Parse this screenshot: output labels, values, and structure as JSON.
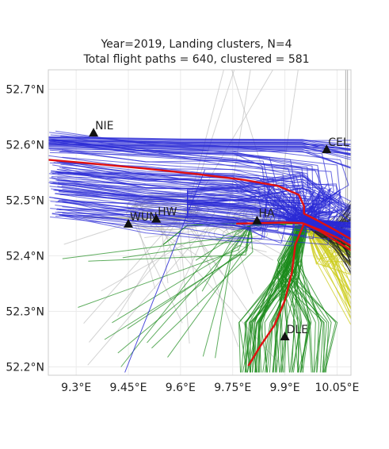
{
  "chart_data": {
    "type": "line",
    "title": [
      "Year=2019, Landing clusters, N=4",
      "Total flight paths = 640, clustered = 581"
    ],
    "xlabel": "",
    "ylabel": "",
    "xlim": [
      9.22,
      10.09
    ],
    "ylim": [
      52.185,
      52.735
    ],
    "grid": true,
    "x_ticks": [
      9.3,
      9.45,
      9.6,
      9.75,
      9.9,
      10.05
    ],
    "x_tick_labels": [
      "9.3°E",
      "9.45°E",
      "9.6°E",
      "9.75°E",
      "9.9°E",
      "10.05°E"
    ],
    "y_ticks": [
      52.2,
      52.3,
      52.4,
      52.5,
      52.6,
      52.7
    ],
    "y_tick_labels": [
      "52.2°N",
      "52.3°N",
      "52.4°N",
      "52.5°N",
      "52.6°N",
      "52.7°N"
    ],
    "stations": [
      {
        "name": "NIE",
        "lon": 9.35,
        "lat": 52.622
      },
      {
        "name": "CEL",
        "lon": 10.02,
        "lat": 52.592
      },
      {
        "name": "WUN",
        "lon": 9.45,
        "lat": 52.458
      },
      {
        "name": "HW",
        "lon": 9.53,
        "lat": 52.467
      },
      {
        "name": "HA",
        "lon": 9.82,
        "lat": 52.464
      },
      {
        "name": "DLE",
        "lon": 9.9,
        "lat": 52.255
      }
    ],
    "colors": {
      "cluster_west": "#2b2bd6",
      "cluster_south": "#1a8a1a",
      "cluster_east": "#cccc1a",
      "cluster_east_dark": "#222222",
      "unclustered": "#b5b5b5",
      "centroid": "#e01010"
    },
    "centroids": [
      {
        "cluster": "west",
        "points": [
          [
            9.22,
            52.573
          ],
          [
            9.35,
            52.566
          ],
          [
            9.5,
            52.557
          ],
          [
            9.65,
            52.547
          ],
          [
            9.78,
            52.537
          ],
          [
            9.88,
            52.526
          ],
          [
            9.94,
            52.51
          ],
          [
            9.955,
            52.49
          ],
          [
            9.955,
            52.476
          ],
          [
            9.99,
            52.465
          ],
          [
            10.04,
            52.448
          ],
          [
            10.09,
            52.43
          ]
        ]
      },
      {
        "cluster": "south",
        "points": [
          [
            9.795,
            52.202
          ],
          [
            9.83,
            52.238
          ],
          [
            9.87,
            52.275
          ],
          [
            9.9,
            52.32
          ],
          [
            9.92,
            52.37
          ],
          [
            9.93,
            52.42
          ],
          [
            9.955,
            52.458
          ],
          [
            10.0,
            52.445
          ],
          [
            10.09,
            52.41
          ]
        ]
      },
      {
        "cluster": "east",
        "points": [
          [
            9.76,
            52.458
          ],
          [
            9.9,
            52.46
          ],
          [
            9.95,
            52.459
          ],
          [
            10.0,
            52.447
          ],
          [
            10.05,
            52.433
          ],
          [
            10.09,
            52.418
          ]
        ]
      }
    ]
  }
}
